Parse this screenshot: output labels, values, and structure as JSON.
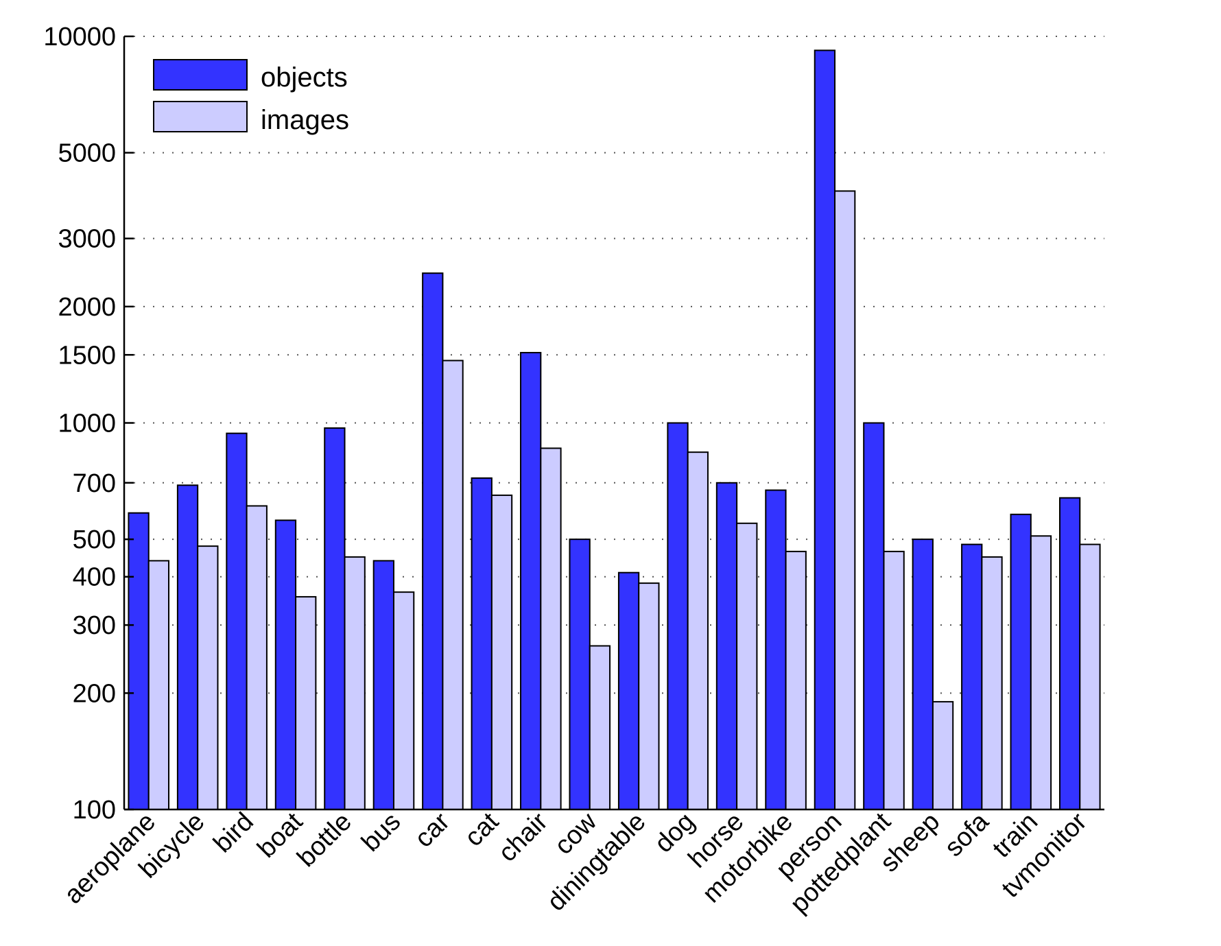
{
  "colors": {
    "objects": "#3333ff",
    "images": "#ccccff"
  },
  "chart_data": {
    "type": "bar",
    "yscale": "log",
    "ylim": [
      100,
      10000
    ],
    "yticks": [
      100,
      200,
      300,
      400,
      500,
      700,
      1000,
      1500,
      2000,
      3000,
      5000,
      10000
    ],
    "grid": true,
    "legend_position": "top-left",
    "categories": [
      "aeroplane",
      "bicycle",
      "bird",
      "boat",
      "bottle",
      "bus",
      "car",
      "cat",
      "chair",
      "cow",
      "diningtable",
      "dog",
      "horse",
      "motorbike",
      "person",
      "pottedplant",
      "sheep",
      "sofa",
      "train",
      "tvmonitor"
    ],
    "series": [
      {
        "name": "objects",
        "values": [
          585,
          690,
          940,
          560,
          970,
          440,
          2440,
          720,
          1520,
          500,
          410,
          1000,
          700,
          670,
          9200,
          1000,
          500,
          485,
          580,
          640
        ]
      },
      {
        "name": "images",
        "values": [
          440,
          480,
          610,
          355,
          450,
          365,
          1450,
          650,
          860,
          265,
          385,
          840,
          550,
          465,
          3980,
          465,
          190,
          450,
          510,
          485
        ]
      }
    ]
  }
}
